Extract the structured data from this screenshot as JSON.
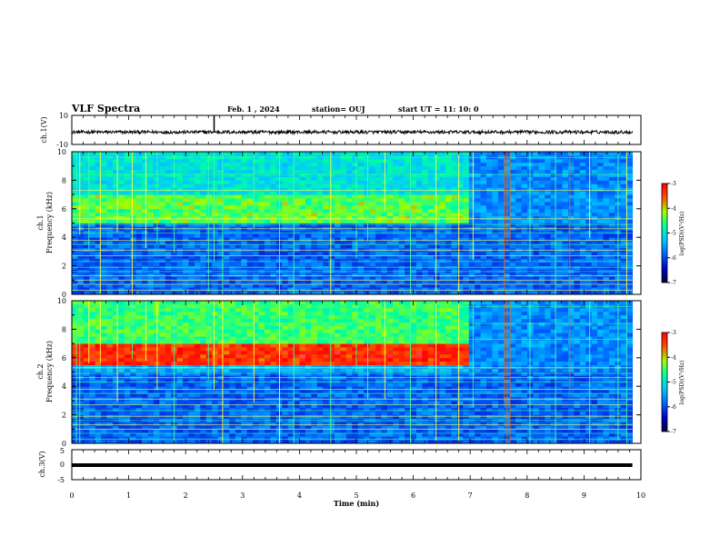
{
  "header": {
    "title": "VLF Spectra",
    "date": "Feb. 1 , 2024",
    "station": "station= OUJ",
    "start": "start  UT =   11: 10: 0"
  },
  "colors": {
    "spectrogram_stops": [
      "#00003c",
      "#0000c8",
      "#0064ff",
      "#00c8ff",
      "#00ffa0",
      "#a0ff00",
      "#ff5000",
      "#ff0000",
      "#ffffff"
    ],
    "trace": "#000000",
    "background": "#ffffff"
  },
  "chart_data": [
    {
      "type": "line",
      "panel": "ch1-waveform",
      "ylabel": "ch.1(V)",
      "ylim": [
        -10,
        10
      ],
      "yticks": [
        "10",
        "-10"
      ],
      "xlim": [
        0,
        10
      ],
      "baseline_v": -1.5,
      "spike_x_min": 2.5
    },
    {
      "type": "heatmap",
      "panel": "ch1-spectrogram",
      "ylabel_line1": "ch.1",
      "ylabel_line2": "Frequency (kHz)",
      "ylim": [
        0,
        10
      ],
      "yticks": [
        "0",
        "2",
        "4",
        "6",
        "8",
        "10"
      ],
      "xlim": [
        0,
        10
      ],
      "hiss_band_khz": [
        5.0,
        7.0
      ],
      "hiss_end_min": 7.0,
      "colorbar_label": "log(PSD)(V²/Hz)",
      "colorbar_ticks": [
        "-3",
        "-4",
        "-5",
        "-6",
        "-7"
      ],
      "colorbar_range": [
        -7,
        -3
      ]
    },
    {
      "type": "heatmap",
      "panel": "ch2-spectrogram",
      "ylabel_line1": "ch.2",
      "ylabel_line2": "Frequency (kHz)",
      "ylim": [
        0,
        10
      ],
      "yticks": [
        "0",
        "2",
        "4",
        "6",
        "8",
        "10"
      ],
      "xlim": [
        0,
        10
      ],
      "hiss_band_khz": [
        5.5,
        7.0
      ],
      "hiss_end_min": 7.0,
      "colorbar_label": "log(PSD)(V²/Hz)",
      "colorbar_ticks": [
        "-3",
        "-4",
        "-5",
        "-6",
        "-7"
      ],
      "colorbar_range": [
        -7,
        -3
      ]
    },
    {
      "type": "line",
      "panel": "ch3-waveform",
      "ylabel": "ch.3(V)",
      "ylim": [
        -5,
        5
      ],
      "yticks": [
        "5",
        "0",
        "-5"
      ],
      "xlim": [
        0,
        10
      ],
      "baseline_v": 0
    }
  ],
  "x_axis": {
    "label": "Time (min)",
    "ticks": [
      "0",
      "1",
      "2",
      "3",
      "4",
      "5",
      "6",
      "7",
      "8",
      "9",
      "10"
    ],
    "data_end_min": 9.85
  }
}
